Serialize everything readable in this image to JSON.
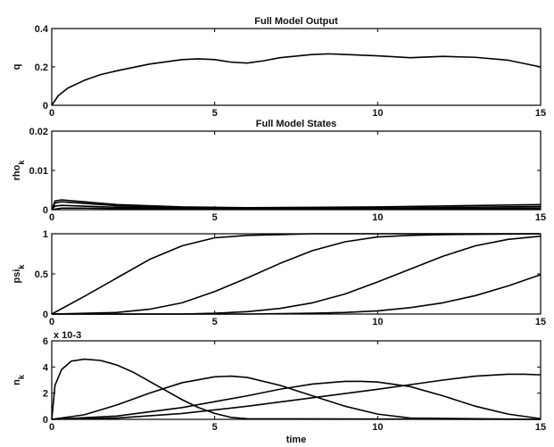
{
  "figure": {
    "title_top": "Full Model Output",
    "title_states": "Full Model States",
    "xlabel": "time"
  },
  "chart_data": [
    {
      "type": "line",
      "title": "Full Model Output",
      "xlabel": "",
      "ylabel": "q",
      "xlim": [
        0,
        15
      ],
      "ylim": [
        0,
        0.4
      ],
      "xticks": [
        "0",
        "5",
        "10",
        "15"
      ],
      "yticks": [
        "0",
        "0.2",
        "0.4"
      ],
      "grid": false,
      "series": [
        {
          "x": [
            0,
            0.2,
            0.5,
            1,
            1.5,
            2,
            3,
            4,
            4.5,
            5,
            5.5,
            6,
            6.5,
            7,
            8,
            8.5,
            9,
            10,
            11,
            12,
            13,
            14,
            15
          ],
          "y": [
            0,
            0.05,
            0.09,
            0.13,
            0.16,
            0.18,
            0.215,
            0.238,
            0.242,
            0.238,
            0.225,
            0.22,
            0.232,
            0.248,
            0.265,
            0.268,
            0.265,
            0.258,
            0.248,
            0.255,
            0.25,
            0.235,
            0.2
          ]
        }
      ]
    },
    {
      "type": "line",
      "title": "Full Model States",
      "xlabel": "",
      "ylabel": "rho_k",
      "xlim": [
        0,
        15
      ],
      "ylim": [
        0,
        0.02
      ],
      "xticks": [
        "0",
        "5",
        "10",
        "15"
      ],
      "yticks": [
        "0",
        "0.01",
        "0.02"
      ],
      "grid": false,
      "series": [
        {
          "x": [
            0,
            0.1,
            0.3,
            1,
            2,
            4,
            6,
            10,
            15
          ],
          "y": [
            0,
            0.0022,
            0.0025,
            0.002,
            0.0013,
            0.0007,
            0.0005,
            0.0007,
            0.0013
          ]
        },
        {
          "x": [
            0,
            0.1,
            0.3,
            1,
            2,
            4,
            6,
            10,
            15
          ],
          "y": [
            0,
            0.0017,
            0.002,
            0.0016,
            0.001,
            0.0005,
            0.0003,
            0.0004,
            0.0008
          ]
        },
        {
          "x": [
            0,
            0.1,
            0.3,
            1,
            2,
            4,
            6,
            10,
            15
          ],
          "y": [
            0,
            0.0009,
            0.0011,
            0.0009,
            0.0006,
            0.0003,
            0.0002,
            0.0002,
            0.0004
          ]
        },
        {
          "x": [
            0,
            0.3,
            1,
            3,
            6,
            10,
            15
          ],
          "y": [
            0,
            0.0004,
            0.0004,
            0.0002,
            0.0001,
            0.0001,
            0.0002
          ]
        }
      ]
    },
    {
      "type": "line",
      "title": "",
      "xlabel": "",
      "ylabel": "psi_k",
      "xlim": [
        0,
        15
      ],
      "ylim": [
        0,
        1
      ],
      "xticks": [
        "0",
        "5",
        "10",
        "15"
      ],
      "yticks": [
        "0",
        "0.5",
        "1"
      ],
      "grid": false,
      "series": [
        {
          "x": [
            0,
            1,
            2,
            3,
            4,
            5,
            6,
            7,
            8,
            15
          ],
          "y": [
            0,
            0.22,
            0.45,
            0.68,
            0.85,
            0.95,
            0.98,
            0.99,
            1.0,
            1.0
          ]
        },
        {
          "x": [
            0,
            2,
            3,
            4,
            5,
            6,
            7,
            8,
            9,
            10,
            11,
            12,
            15
          ],
          "y": [
            0,
            0.02,
            0.06,
            0.14,
            0.28,
            0.45,
            0.63,
            0.79,
            0.9,
            0.96,
            0.98,
            0.99,
            1.0
          ]
        },
        {
          "x": [
            0,
            4,
            5,
            6,
            7,
            8,
            9,
            10,
            11,
            12,
            13,
            14,
            15
          ],
          "y": [
            0,
            0.0,
            0.01,
            0.03,
            0.07,
            0.14,
            0.25,
            0.4,
            0.56,
            0.72,
            0.85,
            0.93,
            0.97
          ]
        },
        {
          "x": [
            0,
            6,
            7,
            8,
            9,
            10,
            11,
            12,
            13,
            14,
            15
          ],
          "y": [
            0,
            0.0,
            0.005,
            0.01,
            0.02,
            0.04,
            0.08,
            0.14,
            0.23,
            0.35,
            0.49
          ]
        }
      ]
    },
    {
      "type": "line",
      "title": "",
      "xlabel": "time",
      "ylabel": "n_k",
      "y_multiplier": "x 10-3",
      "xlim": [
        0,
        15
      ],
      "ylim": [
        0,
        6
      ],
      "xticks": [
        "0",
        "5",
        "10",
        "15"
      ],
      "yticks": [
        "0",
        "2",
        "4",
        "6"
      ],
      "grid": false,
      "series": [
        {
          "x": [
            0,
            0.1,
            0.3,
            0.6,
            1,
            1.5,
            2,
            2.5,
            3,
            3.5,
            4,
            4.5,
            5,
            5.5,
            6,
            15
          ],
          "y": [
            0,
            2.6,
            3.8,
            4.45,
            4.6,
            4.5,
            4.15,
            3.6,
            2.9,
            2.2,
            1.5,
            0.9,
            0.45,
            0.15,
            0.05,
            0.0
          ]
        },
        {
          "x": [
            0,
            1,
            2,
            3,
            4,
            5,
            5.5,
            6,
            7,
            8,
            9,
            10,
            11,
            15
          ],
          "y": [
            0,
            0.35,
            1.1,
            2.0,
            2.8,
            3.25,
            3.3,
            3.2,
            2.6,
            1.8,
            1.0,
            0.4,
            0.1,
            0.0
          ]
        },
        {
          "x": [
            0,
            2,
            4,
            6,
            7,
            8,
            9,
            9.5,
            10,
            11,
            12,
            13,
            14,
            15
          ],
          "y": [
            0,
            0.25,
            0.9,
            1.8,
            2.3,
            2.7,
            2.9,
            2.9,
            2.85,
            2.5,
            1.8,
            1.0,
            0.4,
            0.05
          ]
        },
        {
          "x": [
            0,
            2,
            4,
            6,
            8,
            10,
            12,
            13,
            14,
            14.5,
            15
          ],
          "y": [
            0,
            0.1,
            0.45,
            1.0,
            1.65,
            2.3,
            3.0,
            3.3,
            3.45,
            3.45,
            3.4
          ]
        }
      ]
    }
  ]
}
